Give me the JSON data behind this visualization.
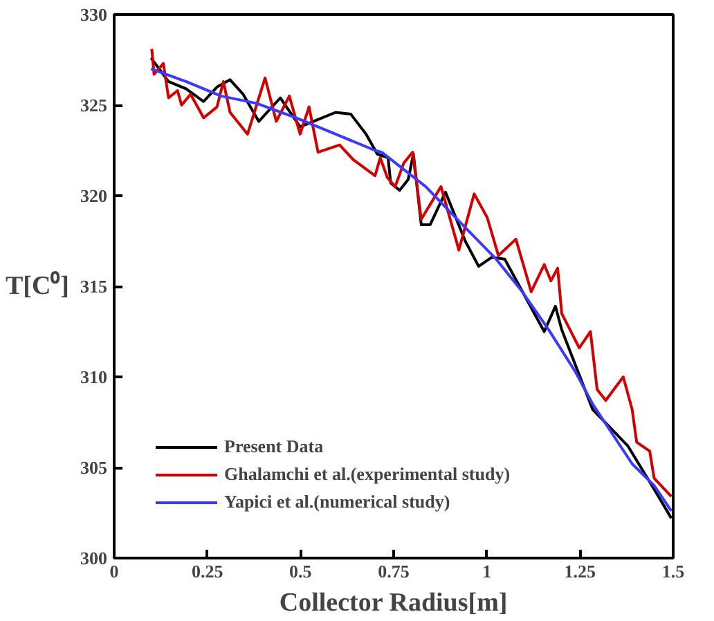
{
  "chart_data": {
    "type": "line",
    "xlabel": "Collector Radius[m]",
    "ylabel": "T[C⁰]",
    "xlim": [
      0,
      1.5
    ],
    "ylim": [
      300,
      330
    ],
    "xticks": [
      0,
      {
        "value": 0.25,
        "label": "0.25"
      },
      {
        "value": 0.5,
        "label": "0.5"
      },
      {
        "value": 0.75,
        "label": "0.75"
      },
      1,
      {
        "value": 1.25,
        "label": "1.25"
      },
      {
        "value": 1.5,
        "label": "1.5"
      }
    ],
    "yticks": [
      300,
      305,
      310,
      315,
      320,
      325,
      330
    ],
    "grid": false,
    "legend": "bottom left",
    "line_style": "solid",
    "marker": "none",
    "series": [
      {
        "name": "Present Data",
        "color": "#000000",
        "x": [
          0.099,
          0.146,
          0.193,
          0.24,
          0.276,
          0.311,
          0.346,
          0.388,
          0.446,
          0.499,
          0.547,
          0.594,
          0.635,
          0.676,
          0.706,
          0.735,
          0.742,
          0.766,
          0.789,
          0.803,
          0.824,
          0.848,
          0.889,
          0.942,
          0.978,
          1.013,
          1.048,
          1.154,
          1.184,
          1.201,
          1.284,
          1.378,
          1.449,
          1.495
        ],
        "values": [
          327.6,
          326.3,
          325.9,
          325.2,
          326.0,
          326.4,
          325.6,
          324.1,
          325.4,
          323.8,
          324.2,
          324.6,
          324.5,
          323.4,
          322.3,
          322.1,
          320.7,
          320.3,
          320.9,
          322.3,
          318.4,
          318.4,
          320.2,
          317.5,
          316.1,
          316.6,
          316.5,
          312.5,
          313.9,
          312.6,
          308.2,
          306.2,
          303.8,
          302.2
        ]
      },
      {
        "name": "Ghalamchi et al.(experimental study)",
        "color": "#d40000",
        "x": [
          0.101,
          0.107,
          0.132,
          0.146,
          0.17,
          0.181,
          0.205,
          0.24,
          0.276,
          0.293,
          0.311,
          0.358,
          0.405,
          0.435,
          0.47,
          0.499,
          0.523,
          0.547,
          0.605,
          0.641,
          0.7,
          0.714,
          0.733,
          0.754,
          0.777,
          0.801,
          0.824,
          0.877,
          0.925,
          0.966,
          1.001,
          1.031,
          1.078,
          1.119,
          1.154,
          1.172,
          1.19,
          1.201,
          1.248,
          1.278,
          1.296,
          1.319,
          1.366,
          1.39,
          1.402,
          1.437,
          1.449,
          1.495
        ],
        "values": [
          328.1,
          326.7,
          327.3,
          325.4,
          325.8,
          325.0,
          325.6,
          324.3,
          324.9,
          326.3,
          324.6,
          323.4,
          326.5,
          324.1,
          325.5,
          323.4,
          324.9,
          322.4,
          322.8,
          322.0,
          321.1,
          322.1,
          321.0,
          320.5,
          321.8,
          322.4,
          318.7,
          320.5,
          317.0,
          320.1,
          318.8,
          316.7,
          317.6,
          314.7,
          316.2,
          315.3,
          316.0,
          313.5,
          311.6,
          312.5,
          309.3,
          308.7,
          310.0,
          308.2,
          306.4,
          305.9,
          304.4,
          303.4
        ]
      },
      {
        "name": "Yapici et al.(numerical study)",
        "color": "#3a3aff",
        "x": [
          0.099,
          0.193,
          0.287,
          0.382,
          0.488,
          0.594,
          0.7,
          0.718,
          0.836,
          0.93,
          1.025,
          1.095,
          1.166,
          1.237,
          1.284,
          1.39,
          1.449,
          1.495
        ],
        "values": [
          327.0,
          326.3,
          325.5,
          325.1,
          324.3,
          323.4,
          322.5,
          322.4,
          320.5,
          318.5,
          316.5,
          314.7,
          312.6,
          310.3,
          308.5,
          305.2,
          304.0,
          302.6
        ]
      }
    ]
  }
}
